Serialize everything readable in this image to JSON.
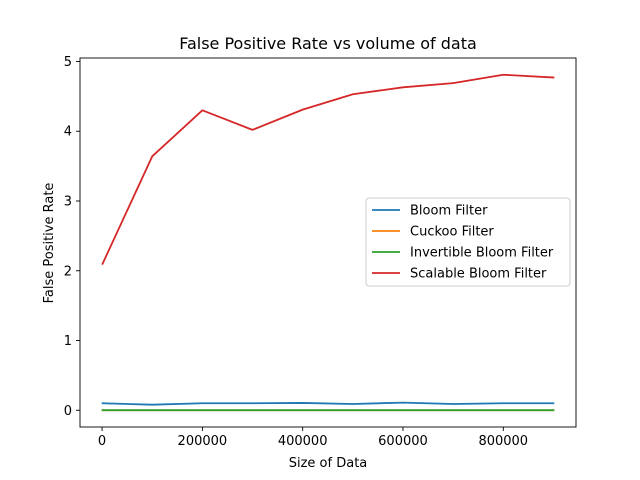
{
  "chart_data": {
    "type": "line",
    "title": "False Positive Rate vs volume of data",
    "xlabel": "Size of Data",
    "ylabel": "False Positive Rate",
    "x": [
      1000,
      100000,
      200000,
      300000,
      400000,
      500000,
      600000,
      700000,
      800000,
      900000
    ],
    "xlim": [
      -44000,
      945000
    ],
    "ylim": [
      -0.24,
      5.05
    ],
    "xticks": [
      0,
      200000,
      400000,
      600000,
      800000
    ],
    "xtick_labels": [
      "0",
      "200000",
      "400000",
      "600000",
      "800000"
    ],
    "yticks": [
      0,
      1,
      2,
      3,
      4,
      5
    ],
    "ytick_labels": [
      "0",
      "1",
      "2",
      "3",
      "4",
      "5"
    ],
    "grid": false,
    "legend_position": "center-right",
    "series": [
      {
        "name": "Bloom Filter",
        "color": "#1f77b4",
        "values": [
          0.1,
          0.08,
          0.1,
          0.1,
          0.105,
          0.09,
          0.11,
          0.09,
          0.1,
          0.1
        ]
      },
      {
        "name": "Cuckoo Filter",
        "color": "#ff7f0e",
        "values": [
          0,
          0,
          0,
          0,
          0,
          0,
          0,
          0,
          0,
          0
        ]
      },
      {
        "name": "Invertible Bloom Filter",
        "color": "#2ca02c",
        "values": [
          0.001,
          0.001,
          0.001,
          0.001,
          0.001,
          0.001,
          0.001,
          0.001,
          0.001,
          0.001
        ]
      },
      {
        "name": "Scalable Bloom Filter",
        "color": "#d62728",
        "values": [
          2.1,
          3.64,
          4.3,
          4.02,
          4.31,
          4.53,
          4.63,
          4.69,
          4.81,
          4.77
        ]
      }
    ]
  }
}
